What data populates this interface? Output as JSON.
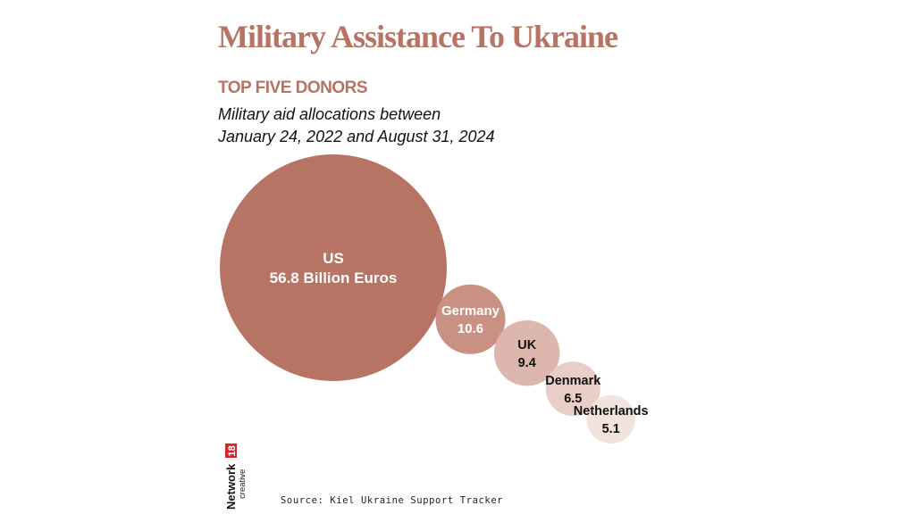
{
  "title": "Military Assistance To Ukraine",
  "subtitle": "TOP FIVE DONORS",
  "description": {
    "line1": "Military aid allocations between",
    "line2": "January 24, 2022 and August 31, 2024"
  },
  "source": "Source: Kiel Ukraine Support Tracker",
  "branding": {
    "name": "Network",
    "number": "18",
    "tagline": "creative"
  },
  "chart_data": {
    "type": "bubble",
    "title": "Military Assistance To Ukraine",
    "subtitle": "TOP FIVE DONORS",
    "unit": "Billion Euros",
    "series": [
      {
        "name": "US",
        "value": 56.8,
        "label": "56.8 Billion Euros",
        "color": "#b77465",
        "text_color": "#ffffff"
      },
      {
        "name": "Germany",
        "value": 10.6,
        "label": "10.6",
        "color": "#c89184",
        "text_color": "#ffffff"
      },
      {
        "name": "UK",
        "value": 9.4,
        "label": "9.4",
        "color": "#ddb7ad",
        "text_color": "#111111"
      },
      {
        "name": "Denmark",
        "value": 6.5,
        "label": "6.5",
        "color": "#e8cec7",
        "text_color": "#111111"
      },
      {
        "name": "Netherlands",
        "value": 5.1,
        "label": "5.1",
        "color": "#f2e3df",
        "text_color": "#111111"
      }
    ]
  },
  "colors": {
    "accent": "#b77465",
    "brand_red": "#d6262b"
  }
}
